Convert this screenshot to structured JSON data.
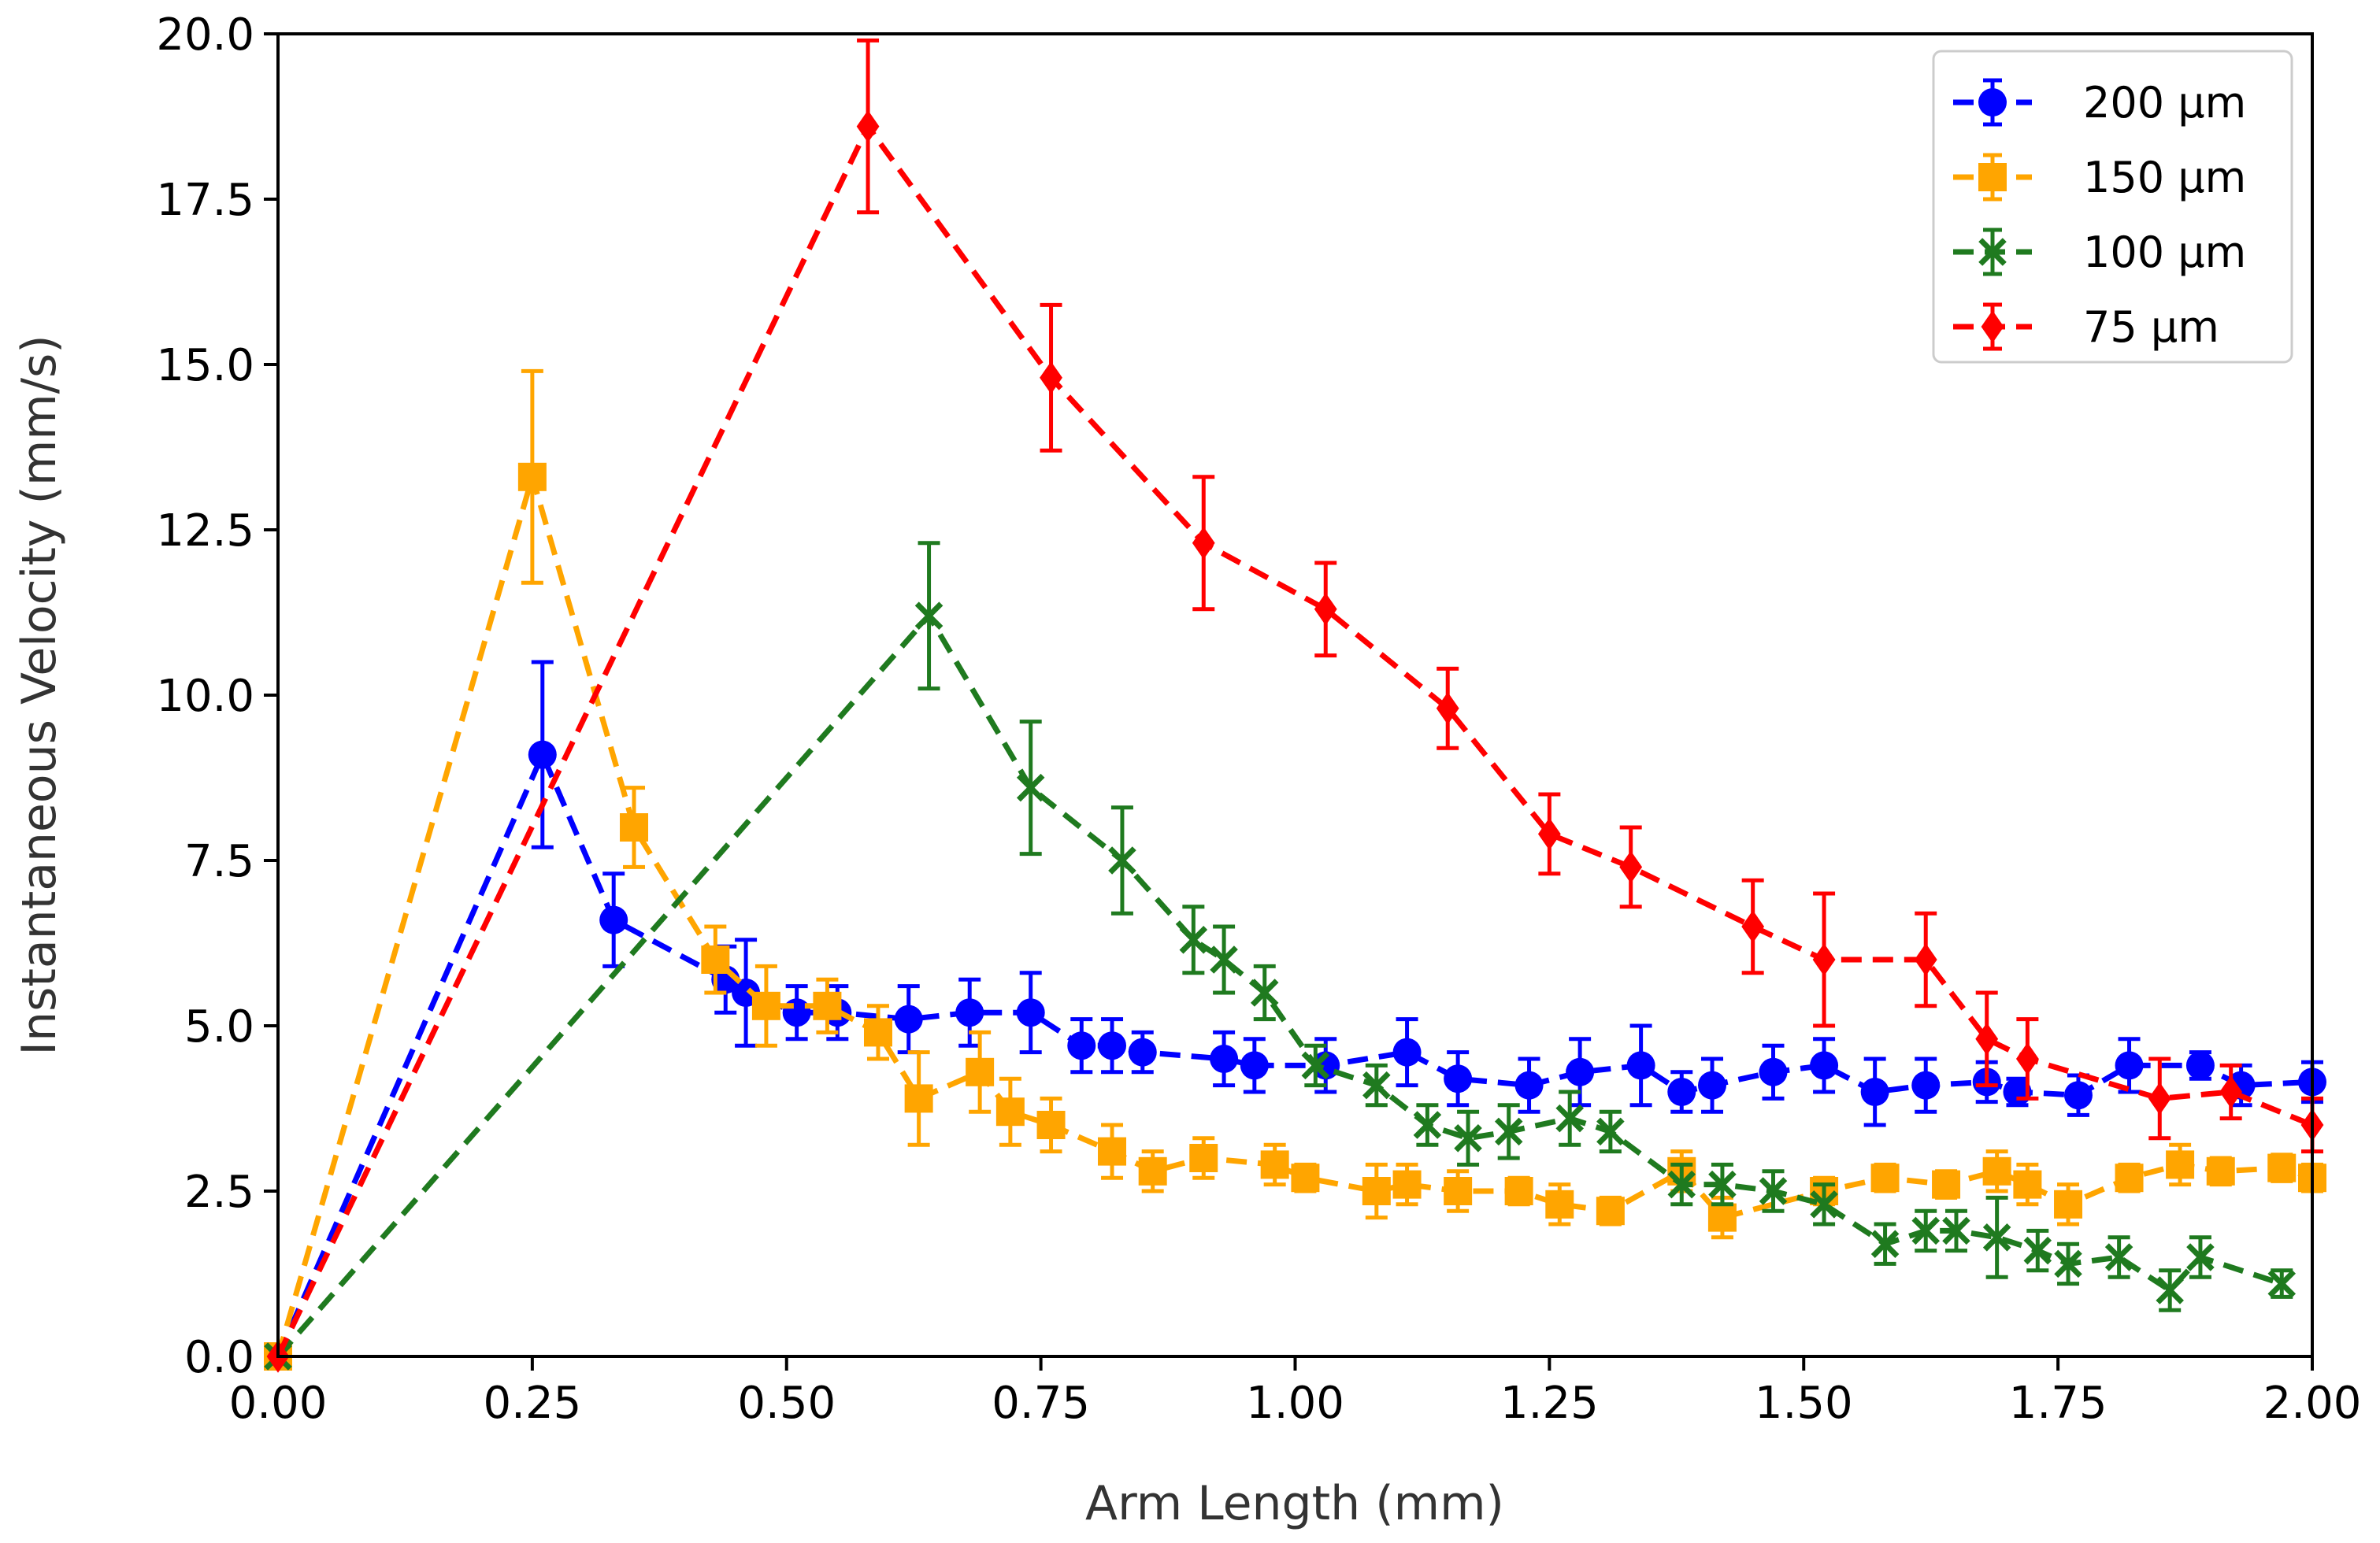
{
  "chart_data": {
    "type": "line",
    "title": "",
    "xlabel": "Arm Length (mm)",
    "ylabel": "Instantaneous Velocity (mm/s)",
    "xlim": [
      0,
      2
    ],
    "ylim": [
      0,
      20
    ],
    "xticks": [
      0,
      0.25,
      0.5,
      0.75,
      1.0,
      1.25,
      1.5,
      1.75,
      2.0
    ],
    "xtick_labels": [
      "0.00",
      "0.25",
      "0.50",
      "0.75",
      "1.00",
      "1.25",
      "1.50",
      "1.75",
      "2.00"
    ],
    "yticks": [
      0,
      2.5,
      5,
      7.5,
      10,
      12.5,
      15,
      17.5,
      20
    ],
    "ytick_labels": [
      "0.0",
      "2.5",
      "5.0",
      "7.5",
      "10.0",
      "12.5",
      "15.0",
      "17.5",
      "20.0"
    ],
    "grid": false,
    "legend_position": "top-right",
    "series": [
      {
        "name": "200 μm",
        "color": "#0000ff",
        "marker": "circle",
        "x": [
          0,
          0.26,
          0.33,
          0.44,
          0.46,
          0.51,
          0.55,
          0.62,
          0.68,
          0.74,
          0.79,
          0.82,
          0.85,
          0.93,
          0.96,
          1.03,
          1.11,
          1.16,
          1.23,
          1.28,
          1.34,
          1.38,
          1.41,
          1.47,
          1.52,
          1.57,
          1.62,
          1.68,
          1.71,
          1.77,
          1.82,
          1.89,
          1.93,
          2.0
        ],
        "y": [
          0,
          9.1,
          6.6,
          5.7,
          5.5,
          5.2,
          5.2,
          5.1,
          5.2,
          5.2,
          4.7,
          4.7,
          4.6,
          4.5,
          4.4,
          4.4,
          4.6,
          4.2,
          4.1,
          4.3,
          4.4,
          4.0,
          4.1,
          4.3,
          4.4,
          4.0,
          4.1,
          4.15,
          4.0,
          3.95,
          4.4,
          4.4,
          4.1,
          4.15
        ],
        "err": [
          0,
          1.4,
          0.7,
          0.5,
          0.8,
          0.4,
          0.4,
          0.5,
          0.5,
          0.6,
          0.4,
          0.4,
          0.3,
          0.4,
          0.4,
          0.4,
          0.5,
          0.4,
          0.4,
          0.5,
          0.6,
          0.3,
          0.4,
          0.4,
          0.4,
          0.5,
          0.4,
          0.3,
          0.2,
          0.3,
          0.4,
          0.2,
          0.3,
          0.3
        ]
      },
      {
        "name": "150 μm",
        "color": "#ffa500",
        "marker": "square",
        "x": [
          0,
          0.25,
          0.35,
          0.43,
          0.48,
          0.54,
          0.59,
          0.63,
          0.69,
          0.72,
          0.76,
          0.82,
          0.86,
          0.91,
          0.98,
          1.01,
          1.08,
          1.11,
          1.16,
          1.22,
          1.26,
          1.31,
          1.38,
          1.42,
          1.52,
          1.58,
          1.64,
          1.69,
          1.72,
          1.76,
          1.82,
          1.87,
          1.91,
          1.97,
          2.0
        ],
        "y": [
          0,
          13.3,
          8.0,
          6.0,
          5.3,
          5.3,
          4.9,
          3.9,
          4.3,
          3.7,
          3.5,
          3.1,
          2.8,
          3.0,
          2.9,
          2.7,
          2.5,
          2.6,
          2.5,
          2.5,
          2.3,
          2.2,
          2.8,
          2.1,
          2.5,
          2.7,
          2.6,
          2.8,
          2.6,
          2.3,
          2.7,
          2.9,
          2.8,
          2.85,
          2.7
        ],
        "err": [
          0,
          1.6,
          0.6,
          0.5,
          0.6,
          0.4,
          0.4,
          0.7,
          0.6,
          0.5,
          0.4,
          0.4,
          0.3,
          0.3,
          0.3,
          0.2,
          0.4,
          0.3,
          0.3,
          0.2,
          0.3,
          0.2,
          0.3,
          0.3,
          0.2,
          0.2,
          0.2,
          0.3,
          0.3,
          0.3,
          0.2,
          0.3,
          0.2,
          0.2,
          0.2
        ]
      },
      {
        "name": "100 μm",
        "color": "#1f7a1f",
        "marker": "x",
        "x": [
          0,
          0.64,
          0.74,
          0.83,
          0.9,
          0.93,
          0.97,
          1.02,
          1.08,
          1.13,
          1.17,
          1.21,
          1.27,
          1.31,
          1.38,
          1.42,
          1.47,
          1.52,
          1.58,
          1.62,
          1.65,
          1.69,
          1.73,
          1.76,
          1.81,
          1.86,
          1.89,
          1.97
        ],
        "y": [
          0,
          11.2,
          8.6,
          7.5,
          6.3,
          6.0,
          5.5,
          4.4,
          4.1,
          3.5,
          3.3,
          3.4,
          3.6,
          3.4,
          2.6,
          2.6,
          2.5,
          2.3,
          1.7,
          1.9,
          1.9,
          1.8,
          1.6,
          1.4,
          1.5,
          1.0,
          1.5,
          1.1
        ],
        "err": [
          0,
          1.1,
          1.0,
          0.8,
          0.5,
          0.5,
          0.4,
          0.3,
          0.3,
          0.3,
          0.4,
          0.4,
          0.4,
          0.3,
          0.3,
          0.3,
          0.3,
          0.3,
          0.3,
          0.3,
          0.3,
          0.6,
          0.3,
          0.3,
          0.3,
          0.3,
          0.3,
          0.2
        ]
      },
      {
        "name": "75 μm",
        "color": "#ff0000",
        "marker": "diamond",
        "x": [
          0,
          0.58,
          0.76,
          0.91,
          1.03,
          1.15,
          1.25,
          1.33,
          1.45,
          1.52,
          1.62,
          1.68,
          1.72,
          1.85,
          1.92,
          2.0
        ],
        "y": [
          0,
          18.6,
          14.8,
          12.3,
          11.3,
          9.8,
          7.9,
          7.4,
          6.5,
          6.0,
          6.0,
          4.8,
          4.5,
          3.9,
          4.0,
          3.5
        ],
        "err": [
          0,
          1.3,
          1.1,
          1.0,
          0.7,
          0.6,
          0.6,
          0.6,
          0.7,
          1.0,
          0.7,
          0.7,
          0.6,
          0.6,
          0.4,
          0.4
        ]
      }
    ]
  }
}
